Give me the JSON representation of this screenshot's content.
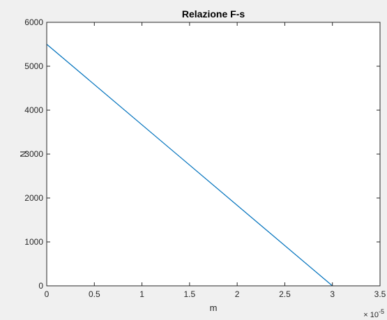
{
  "chart_data": {
    "type": "line",
    "title": "Relazione F-s",
    "xlabel": "m",
    "ylabel": "N",
    "x_scale_exponent_label": "× 10",
    "x_scale_exponent_sup": "-5",
    "xlim": [
      0,
      3.5
    ],
    "ylim": [
      0,
      6000
    ],
    "x_ticks": [
      0,
      0.5,
      1,
      1.5,
      2,
      2.5,
      3,
      3.5
    ],
    "x_tick_labels": [
      "0",
      "0.5",
      "1",
      "1.5",
      "2",
      "2.5",
      "3",
      "3.5"
    ],
    "y_ticks": [
      0,
      1000,
      2000,
      3000,
      4000,
      5000,
      6000
    ],
    "y_tick_labels": [
      "0",
      "1000",
      "2000",
      "3000",
      "4000",
      "5000",
      "6000"
    ],
    "grid": false,
    "series": [
      {
        "color": "#0072bd",
        "x": [
          0,
          3
        ],
        "y": [
          5500,
          0
        ]
      }
    ]
  }
}
